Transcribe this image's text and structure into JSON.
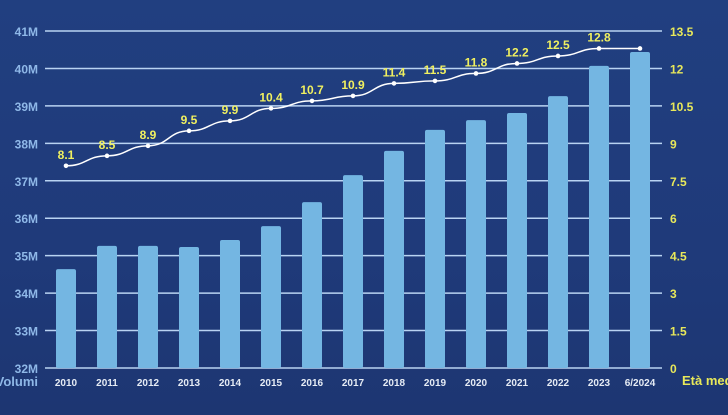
{
  "chart_data": {
    "type": "bar+line",
    "categories": [
      "2010",
      "2011",
      "2012",
      "2013",
      "2014",
      "2015",
      "2016",
      "2017",
      "2018",
      "2019",
      "2020",
      "2021",
      "2022",
      "2023",
      "6/2024"
    ],
    "series": [
      {
        "axis": "left",
        "type": "bar",
        "color": "#74b6e2",
        "values": [
          34.64,
          35.26,
          35.26,
          35.23,
          35.42,
          35.79,
          36.43,
          37.15,
          37.8,
          38.36,
          38.62,
          38.81,
          39.26,
          40.07,
          40.44
        ]
      },
      {
        "axis": "right",
        "type": "line",
        "color": "#ffffff",
        "values": [
          8.1,
          8.5,
          8.9,
          9.5,
          9.9,
          10.4,
          10.7,
          10.9,
          11.4,
          11.5,
          11.8,
          12.2,
          12.5,
          12.8,
          12.8
        ],
        "data_labels": [
          "8.1",
          "8.5",
          "8.9",
          "9.5",
          "9.9",
          "10.4",
          "10.7",
          "10.9",
          "11.4",
          "11.5",
          "11.8",
          "12.2",
          "12.5",
          "12.8",
          ""
        ]
      }
    ],
    "ylabel": "Volumi",
    "y2label": "Età media",
    "ylim": [
      32,
      41
    ],
    "y2lim": [
      0,
      13.5
    ],
    "yticks": [
      "32M",
      "33M",
      "34M",
      "35M",
      "36M",
      "37M",
      "38M",
      "39M",
      "40M",
      "41M"
    ],
    "y2ticks": [
      "0",
      "1.5",
      "3",
      "4.5",
      "6",
      "7.5",
      "9",
      "10.5",
      "12",
      "13.5"
    ],
    "grid": true,
    "colors": {
      "left_axis": "#8fb8e8",
      "right_axis": "#e8e85a",
      "data_labels": "#f0f060"
    }
  }
}
